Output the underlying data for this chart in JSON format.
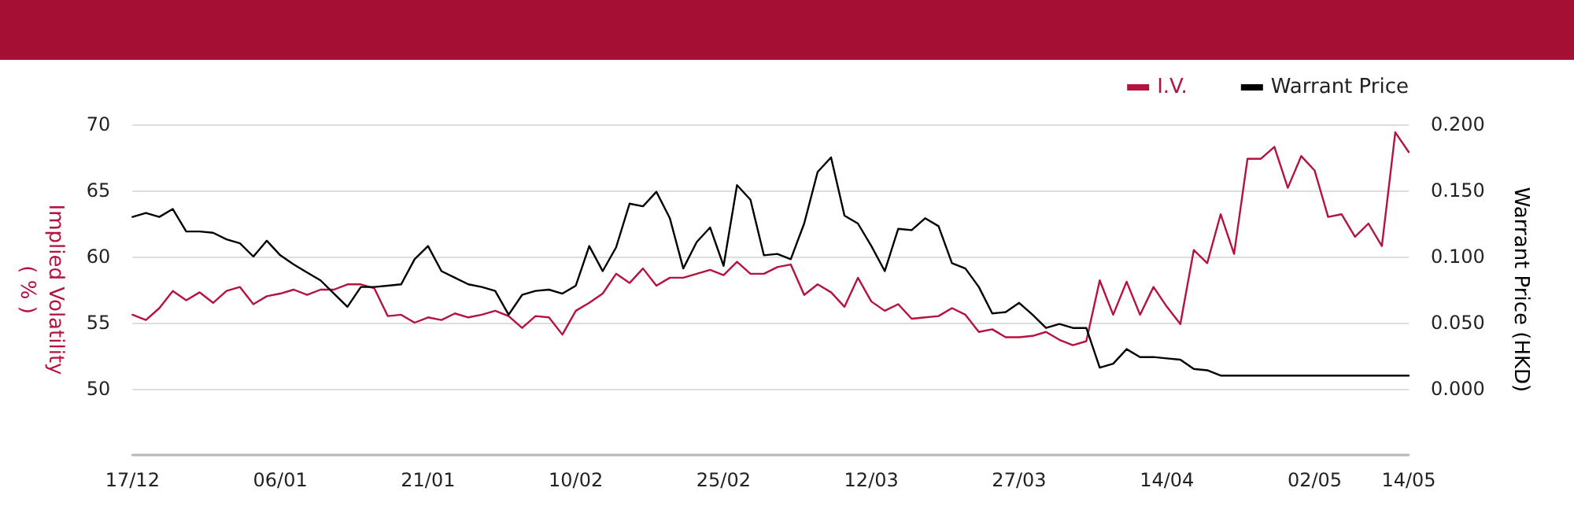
{
  "chart_data": {
    "type": "line",
    "ylabel": "Implied Volatility\n( % )",
    "y2label": "Warrant Price (HKD)",
    "categories": [
      "17/12",
      null,
      null,
      null,
      null,
      null,
      null,
      null,
      null,
      null,
      null,
      "06/01",
      null,
      null,
      null,
      null,
      null,
      null,
      null,
      null,
      null,
      null,
      "21/01",
      null,
      null,
      null,
      null,
      null,
      null,
      null,
      null,
      null,
      null,
      "10/02",
      null,
      null,
      null,
      null,
      null,
      null,
      null,
      null,
      null,
      null,
      "25/02",
      null,
      null,
      null,
      null,
      null,
      null,
      null,
      null,
      null,
      null,
      "12/03",
      null,
      null,
      null,
      null,
      null,
      null,
      null,
      null,
      null,
      null,
      "27/03",
      null,
      null,
      null,
      null,
      null,
      null,
      null,
      null,
      null,
      null,
      "14/04",
      null,
      null,
      null,
      null,
      null,
      null,
      null,
      null,
      null,
      null,
      "02/05",
      null,
      null,
      null,
      null,
      null,
      null,
      "14/05"
    ],
    "series": [
      {
        "name": "I.V.",
        "color": "#b5123f",
        "values": [
          55.6,
          55.2,
          56.1,
          57.4,
          56.7,
          57.3,
          56.5,
          57.4,
          57.7,
          56.4,
          57.0,
          57.2,
          57.5,
          57.1,
          57.5,
          57.5,
          57.9,
          57.9,
          57.6,
          55.5,
          55.6,
          55.0,
          55.4,
          55.2,
          55.7,
          55.4,
          55.6,
          55.9,
          55.5,
          54.6,
          55.5,
          55.4,
          54.1,
          55.9,
          56.5,
          57.2,
          58.7,
          58.0,
          59.1,
          57.8,
          58.4,
          58.4,
          58.7,
          59.0,
          58.6,
          59.6,
          58.7,
          58.7,
          59.2,
          59.4,
          57.1,
          57.9,
          57.3,
          56.2,
          58.4,
          56.6,
          55.9,
          56.4,
          55.3,
          55.4,
          55.5,
          56.1,
          55.6,
          54.3,
          54.5,
          53.9,
          53.9,
          54.0,
          54.3,
          53.7,
          53.3,
          53.6,
          58.2,
          55.6,
          58.1,
          55.6,
          57.7,
          56.2,
          54.9,
          60.5,
          59.5,
          63.2,
          60.2,
          67.4,
          67.4,
          68.3,
          65.2,
          67.6,
          66.5,
          63.0,
          63.2,
          61.5,
          62.5,
          60.8,
          69.4,
          67.9
        ]
      },
      {
        "name": "Warrant Price",
        "color": "#000000",
        "axis": "y2",
        "values": [
          0.13,
          0.133,
          0.13,
          0.136,
          0.119,
          0.119,
          0.118,
          0.113,
          0.11,
          0.1,
          0.112,
          0.101,
          0.094,
          0.088,
          0.082,
          0.072,
          0.062,
          0.077,
          0.077,
          0.078,
          0.079,
          0.098,
          0.108,
          0.089,
          0.084,
          0.079,
          0.077,
          0.074,
          0.056,
          0.071,
          0.074,
          0.075,
          0.072,
          0.078,
          0.108,
          0.089,
          0.107,
          0.14,
          0.138,
          0.149,
          0.129,
          0.091,
          0.111,
          0.122,
          0.093,
          0.154,
          0.143,
          0.101,
          0.102,
          0.098,
          0.125,
          0.164,
          0.175,
          0.131,
          0.125,
          0.108,
          0.089,
          0.121,
          0.12,
          0.129,
          0.123,
          0.095,
          0.091,
          0.077,
          0.057,
          0.058,
          0.065,
          0.056,
          0.046,
          0.049,
          0.046,
          0.046,
          0.016,
          0.019,
          0.03,
          0.024,
          0.024,
          0.023,
          0.022,
          0.015,
          0.014,
          0.01,
          0.01,
          0.01,
          0.01,
          0.01,
          0.01,
          0.01,
          0.01,
          0.01,
          0.01,
          0.01,
          0.01,
          0.01,
          0.01,
          0.01
        ]
      }
    ],
    "ylim": [
      45,
      70
    ],
    "yticks": [
      {
        "value": 45,
        "label": null
      },
      50,
      55,
      60,
      65,
      70
    ],
    "y2lim": [
      -0.05,
      0.2
    ],
    "y2ticks": [
      {
        "value": -0.05,
        "label": null
      },
      {
        "value": 0,
        "label": "0.000"
      },
      {
        "value": 0.05,
        "label": "0.050"
      },
      {
        "value": 0.1,
        "label": "0.100"
      },
      {
        "value": 0.15,
        "label": "0.150"
      },
      {
        "value": 0.2,
        "label": "0.200"
      }
    ],
    "grid": "y",
    "legend": "top right",
    "marker": "none",
    "line_style": "solid"
  }
}
